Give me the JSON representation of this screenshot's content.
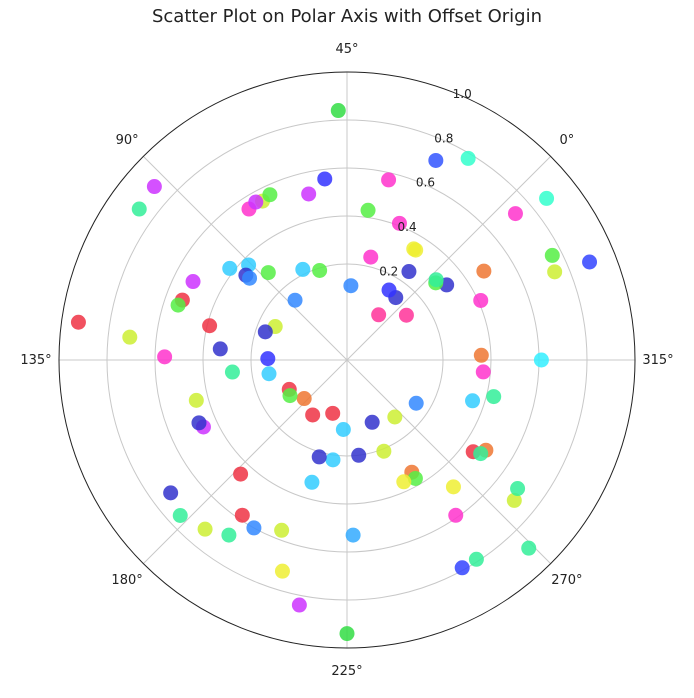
{
  "chart_data": {
    "type": "scatter",
    "projection": "polar",
    "title": "Scatter Plot on Polar Axis with Offset Origin",
    "theta_ticks": [
      "0°",
      "45°",
      "90°",
      "135°",
      "180°",
      "225°",
      "270°",
      "315°"
    ],
    "theta_tick_angles_deg": [
      0,
      45,
      90,
      135,
      180,
      225,
      270,
      315
    ],
    "theta_offset_deg": 45,
    "r_ticks": [
      "0.2",
      "0.4",
      "0.6",
      "0.8",
      "1.0"
    ],
    "r_tick_values": [
      0.2,
      0.4,
      0.6,
      0.8,
      1.0
    ],
    "rlim": [
      -0.2,
      1.0
    ],
    "grid": true,
    "colormap": "hsv",
    "points": [
      {
        "theta": 93,
        "r": 0.88,
        "color": "#cc33ff"
      },
      {
        "theta": 47,
        "r": 0.84,
        "color": "#33dd44"
      },
      {
        "theta": 14,
        "r": 0.78,
        "color": "#33ffcc"
      },
      {
        "theta": 21,
        "r": 0.71,
        "color": "#3355ff"
      },
      {
        "theta": 32,
        "r": 0.57,
        "color": "#ff33cc"
      },
      {
        "theta": 52,
        "r": 0.56,
        "color": "#3333ff"
      },
      {
        "theta": 337,
        "r": 0.89,
        "color": "#3344ff"
      },
      {
        "theta": 354,
        "r": 0.87,
        "color": "#33ffcc"
      },
      {
        "theta": 356,
        "r": 0.73,
        "color": "#ff33cc"
      },
      {
        "theta": 342,
        "r": 0.76,
        "color": "#55ee44"
      },
      {
        "theta": 338,
        "r": 0.74,
        "color": "#ccee33"
      },
      {
        "theta": 315,
        "r": 0.61,
        "color": "#33eeff"
      },
      {
        "theta": 99,
        "r": 0.87,
        "color": "#33ee99"
      },
      {
        "theta": 73,
        "r": 0.55,
        "color": "#ccee33"
      },
      {
        "theta": 70,
        "r": 0.56,
        "color": "#55ee44"
      },
      {
        "theta": 78,
        "r": 0.55,
        "color": "#ff33cc"
      },
      {
        "theta": 75,
        "r": 0.56,
        "color": "#cc33ff"
      },
      {
        "theta": 58,
        "r": 0.51,
        "color": "#cc33ff"
      },
      {
        "theta": 37,
        "r": 0.43,
        "color": "#55ee44"
      },
      {
        "theta": 24,
        "r": 0.41,
        "color": "#ff33cc"
      },
      {
        "theta": 13,
        "r": 0.34,
        "color": "#eeee33"
      },
      {
        "theta": 352,
        "r": 0.32,
        "color": "#3333cc"
      },
      {
        "theta": 356,
        "r": 0.29,
        "color": "#55ee44"
      },
      {
        "theta": 357,
        "r": 0.3,
        "color": "#33ee99"
      },
      {
        "theta": 127,
        "r": 0.93,
        "color": "#ee3344"
      },
      {
        "theta": 129,
        "r": 0.71,
        "color": "#ccee33"
      },
      {
        "theta": 134,
        "r": 0.56,
        "color": "#ff33cc"
      },
      {
        "theta": 97,
        "r": 0.42,
        "color": "#33ccff"
      },
      {
        "theta": 108,
        "r": 0.52,
        "color": "#cc33ff"
      },
      {
        "theta": 115,
        "r": 0.53,
        "color": "#ee3344"
      },
      {
        "theta": 117,
        "r": 0.54,
        "color": "#55ee44"
      },
      {
        "theta": 91,
        "r": 0.37,
        "color": "#33ccff"
      },
      {
        "theta": 95,
        "r": 0.35,
        "color": "#3333cc"
      },
      {
        "theta": 95,
        "r": 0.33,
        "color": "#3388ff"
      },
      {
        "theta": 87,
        "r": 0.29,
        "color": "#55ee44"
      },
      {
        "theta": 71,
        "r": 0.22,
        "color": "#33ccff"
      },
      {
        "theta": 62,
        "r": 0.19,
        "color": "#55ee44"
      },
      {
        "theta": 121,
        "r": 0.39,
        "color": "#ee3344"
      },
      {
        "theta": 130,
        "r": 0.33,
        "color": "#3333cc"
      },
      {
        "theta": 141,
        "r": 0.28,
        "color": "#33ee99"
      },
      {
        "theta": 110,
        "r": 0.13,
        "color": "#ccee33"
      },
      {
        "theta": 116,
        "r": 0.16,
        "color": "#3333cc"
      },
      {
        "theta": 134,
        "r": 0.13,
        "color": "#3333ff"
      },
      {
        "theta": 145,
        "r": 0.13,
        "color": "#33ccff"
      },
      {
        "theta": 162,
        "r": 0.07,
        "color": "#ee3344"
      },
      {
        "theta": 177,
        "r": 0.04,
        "color": "#ee7733"
      },
      {
        "theta": 210,
        "r": 0.03,
        "color": "#ee3344"
      },
      {
        "theta": 10,
        "r": 0.03,
        "color": "#ff3399"
      },
      {
        "theta": 42,
        "r": 0.11,
        "color": "#3388ff"
      },
      {
        "theta": 86,
        "r": 0.13,
        "color": "#3388ff"
      },
      {
        "theta": 7,
        "r": 0.13,
        "color": "#3333cc"
      },
      {
        "theta": 14,
        "r": 0.14,
        "color": "#3333ff"
      },
      {
        "theta": 14,
        "r": 0.34,
        "color": "#eeee33"
      },
      {
        "theta": 32,
        "r": 0.24,
        "color": "#ff33cc"
      },
      {
        "theta": 10,
        "r": 0.25,
        "color": "#3333cc"
      },
      {
        "theta": 352,
        "r": 0.11,
        "color": "#ff3399"
      },
      {
        "theta": 193,
        "r": 0.07,
        "color": "#ee3344"
      },
      {
        "theta": 167,
        "r": 0.08,
        "color": "#55ee44"
      },
      {
        "theta": 222,
        "r": 0.09,
        "color": "#33ccff"
      },
      {
        "theta": 247,
        "r": 0.08,
        "color": "#3333cc"
      },
      {
        "theta": 265,
        "r": 0.11,
        "color": "#ccee33"
      },
      {
        "theta": 283,
        "r": 0.14,
        "color": "#3388ff"
      },
      {
        "theta": 247,
        "r": 0.21,
        "color": "#ccee33"
      },
      {
        "theta": 232,
        "r": 0.2,
        "color": "#3333cc"
      },
      {
        "theta": 217,
        "r": 0.22,
        "color": "#33ccff"
      },
      {
        "theta": 297,
        "r": 0.35,
        "color": "#33ccff"
      },
      {
        "theta": 310,
        "r": 0.37,
        "color": "#ff33cc"
      },
      {
        "theta": 317,
        "r": 0.36,
        "color": "#ee7733"
      },
      {
        "theta": 339,
        "r": 0.41,
        "color": "#ff33cc"
      },
      {
        "theta": 348,
        "r": 0.48,
        "color": "#ee7733"
      },
      {
        "theta": 301,
        "r": 0.43,
        "color": "#33ee99"
      },
      {
        "theta": 279,
        "r": 0.45,
        "color": "#ee3344"
      },
      {
        "theta": 282,
        "r": 0.49,
        "color": "#ee7733"
      },
      {
        "theta": 280,
        "r": 0.48,
        "color": "#33ee99"
      },
      {
        "theta": 255,
        "r": 0.34,
        "color": "#ee7733"
      },
      {
        "theta": 255,
        "r": 0.37,
        "color": "#55ee44"
      },
      {
        "theta": 250,
        "r": 0.36,
        "color": "#eeee33"
      },
      {
        "theta": 260,
        "r": 0.59,
        "color": "#ff33cc"
      },
      {
        "theta": 265,
        "r": 0.49,
        "color": "#eeee33"
      },
      {
        "theta": 275,
        "r": 0.71,
        "color": "#ccee33"
      },
      {
        "theta": 278,
        "r": 0.69,
        "color": "#33ee99"
      },
      {
        "theta": 258,
        "r": 0.79,
        "color": "#33ee99"
      },
      {
        "theta": 254,
        "r": 0.79,
        "color": "#3344ff"
      },
      {
        "theta": 269,
        "r": 0.89,
        "color": "#33ee99"
      },
      {
        "theta": 227,
        "r": 0.53,
        "color": "#33aaff"
      },
      {
        "theta": 225,
        "r": 0.94,
        "color": "#33dd44"
      },
      {
        "theta": 214,
        "r": 0.84,
        "color": "#cc33ff"
      },
      {
        "theta": 208,
        "r": 0.72,
        "color": "#eeee33"
      },
      {
        "theta": 204,
        "r": 0.56,
        "color": "#ccee33"
      },
      {
        "theta": 196,
        "r": 0.6,
        "color": "#3388ff"
      },
      {
        "theta": 191,
        "r": 0.58,
        "color": "#ee3344"
      },
      {
        "theta": 191,
        "r": 0.68,
        "color": "#33ee99"
      },
      {
        "theta": 185,
        "r": 0.72,
        "color": "#ccee33"
      },
      {
        "theta": 178,
        "r": 0.75,
        "color": "#33ee99"
      },
      {
        "theta": 172,
        "r": 0.72,
        "color": "#3333cc"
      },
      {
        "theta": 182,
        "r": 0.45,
        "color": "#ee3344"
      },
      {
        "theta": 160,
        "r": 0.46,
        "color": "#cc33ff"
      },
      {
        "theta": 158,
        "r": 0.47,
        "color": "#3333cc"
      },
      {
        "theta": 150,
        "r": 0.45,
        "color": "#ccee33"
      },
      {
        "theta": 209,
        "r": 0.33,
        "color": "#33ccff"
      },
      {
        "theta": 209,
        "r": 0.22,
        "color": "#3333cc"
      }
    ]
  }
}
